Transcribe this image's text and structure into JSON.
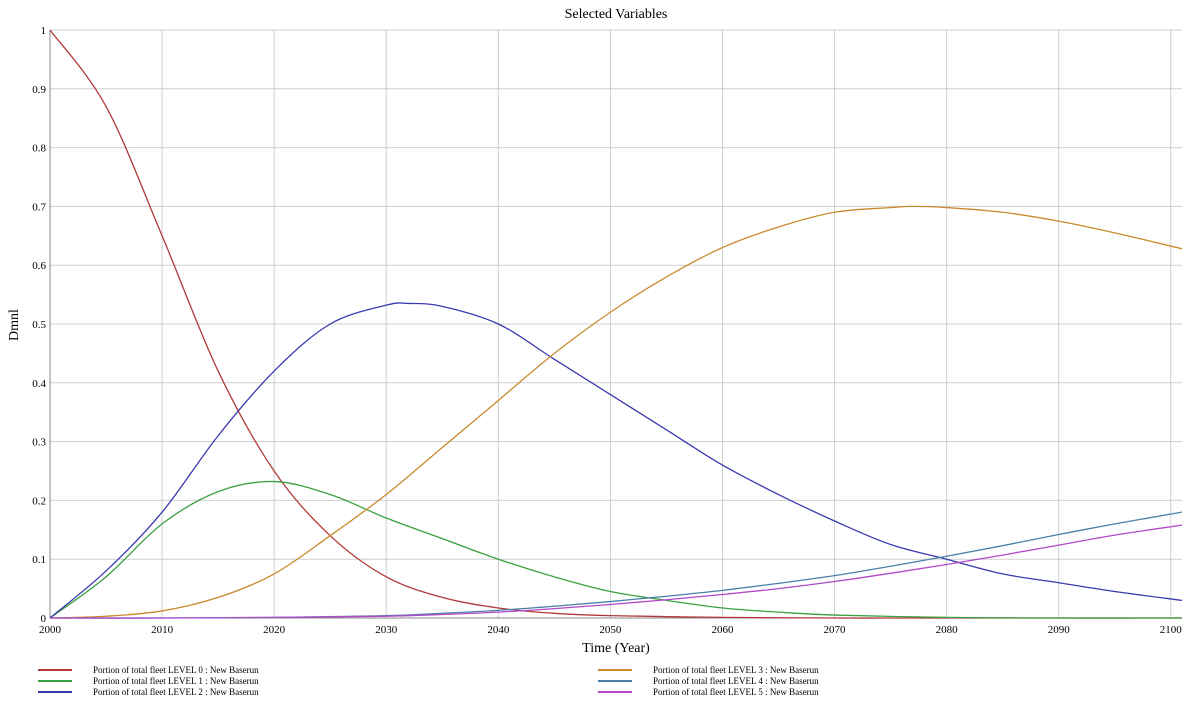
{
  "chart_data": {
    "type": "line",
    "title": "Selected Variables",
    "xlabel": "Time (Year)",
    "ylabel": "Dmnl",
    "xlim": [
      2000,
      2101
    ],
    "ylim": [
      0,
      1
    ],
    "x_ticks": [
      2000,
      2010,
      2020,
      2030,
      2040,
      2050,
      2060,
      2070,
      2080,
      2090,
      2100
    ],
    "y_ticks": [
      0,
      0.1,
      0.2,
      0.3,
      0.4,
      0.5,
      0.6,
      0.7,
      0.8,
      0.9,
      1
    ],
    "y_tick_labels": [
      "0",
      "0.1",
      "0.2",
      "0.3",
      "0.4",
      "0.5",
      "0.6",
      "0.7",
      "0.8",
      "0.9",
      "1"
    ],
    "grid": true,
    "legend_position": "bottom",
    "series": [
      {
        "name": "Portion of total fleet LEVEL 0 : New Baserun",
        "color": "#b03a3a",
        "x": [
          2000,
          2005,
          2010,
          2015,
          2020,
          2025,
          2030,
          2035,
          2040,
          2045,
          2050,
          2060,
          2070,
          2080,
          2090,
          2101
        ],
        "y": [
          1.0,
          0.87,
          0.65,
          0.42,
          0.25,
          0.14,
          0.07,
          0.035,
          0.017,
          0.008,
          0.004,
          0.001,
          0.0,
          0.0,
          0.0,
          0.0
        ]
      },
      {
        "name": "Portion of total fleet LEVEL 1 : New Baserun",
        "color": "#3aa040",
        "x": [
          2000,
          2005,
          2010,
          2015,
          2020,
          2025,
          2030,
          2035,
          2040,
          2045,
          2050,
          2055,
          2060,
          2065,
          2070,
          2080,
          2090,
          2101
        ],
        "y": [
          0.0,
          0.07,
          0.16,
          0.215,
          0.232,
          0.21,
          0.17,
          0.135,
          0.1,
          0.07,
          0.045,
          0.03,
          0.017,
          0.01,
          0.005,
          0.001,
          0.0,
          0.0
        ]
      },
      {
        "name": "Portion of total fleet LEVEL 2 : New Baserun",
        "color": "#3a3ab0",
        "x": [
          2000,
          2005,
          2010,
          2015,
          2020,
          2025,
          2030,
          2032,
          2035,
          2040,
          2045,
          2050,
          2055,
          2060,
          2065,
          2070,
          2075,
          2080,
          2085,
          2090,
          2095,
          2101
        ],
        "y": [
          0.0,
          0.08,
          0.18,
          0.31,
          0.42,
          0.5,
          0.532,
          0.535,
          0.53,
          0.5,
          0.44,
          0.38,
          0.32,
          0.26,
          0.21,
          0.165,
          0.125,
          0.1,
          0.075,
          0.06,
          0.045,
          0.03
        ]
      },
      {
        "name": "Portion of total fleet LEVEL 3 : New Baserun",
        "color": "#c98a2e",
        "x": [
          2000,
          2005,
          2010,
          2015,
          2020,
          2025,
          2030,
          2035,
          2040,
          2045,
          2050,
          2055,
          2060,
          2065,
          2070,
          2075,
          2077,
          2080,
          2085,
          2090,
          2095,
          2101
        ],
        "y": [
          0.0,
          0.003,
          0.012,
          0.035,
          0.075,
          0.14,
          0.21,
          0.29,
          0.37,
          0.45,
          0.52,
          0.58,
          0.63,
          0.665,
          0.69,
          0.698,
          0.7,
          0.698,
          0.69,
          0.675,
          0.655,
          0.628
        ]
      },
      {
        "name": "Portion of total fleet LEVEL 4 : New Baserun",
        "color": "#4a80a8",
        "x": [
          2000,
          2010,
          2020,
          2030,
          2035,
          2040,
          2045,
          2050,
          2055,
          2060,
          2065,
          2070,
          2075,
          2080,
          2085,
          2090,
          2095,
          2101
        ],
        "y": [
          0.0,
          0.0,
          0.001,
          0.004,
          0.008,
          0.013,
          0.02,
          0.028,
          0.037,
          0.047,
          0.059,
          0.072,
          0.088,
          0.105,
          0.123,
          0.142,
          0.16,
          0.18
        ]
      },
      {
        "name": "Portion of total fleet LEVEL 5 : New Baserun",
        "color": "#b04ac8",
        "x": [
          2000,
          2010,
          2020,
          2030,
          2035,
          2040,
          2045,
          2050,
          2055,
          2060,
          2065,
          2070,
          2075,
          2080,
          2085,
          2090,
          2095,
          2101
        ],
        "y": [
          0.0,
          0.0,
          0.001,
          0.003,
          0.006,
          0.01,
          0.016,
          0.023,
          0.031,
          0.04,
          0.05,
          0.062,
          0.076,
          0.091,
          0.107,
          0.124,
          0.141,
          0.158
        ]
      }
    ]
  }
}
